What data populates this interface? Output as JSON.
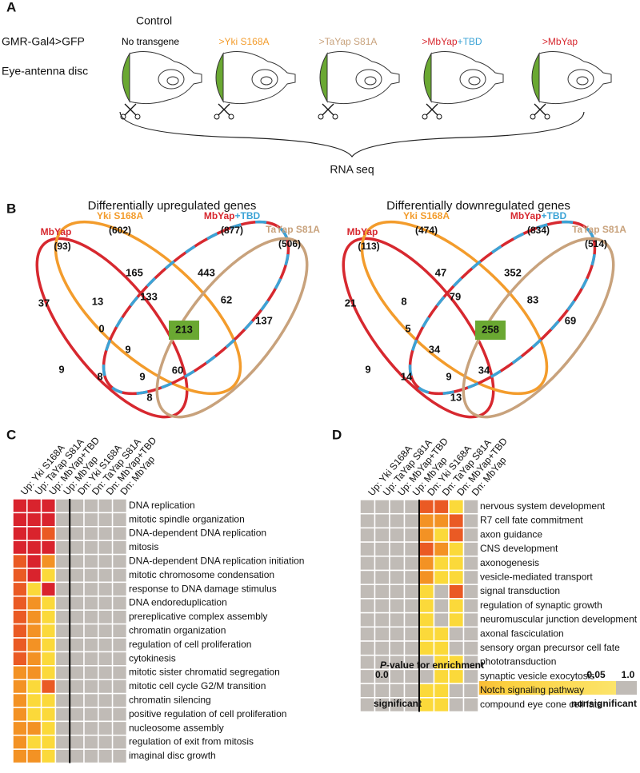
{
  "panel_a": {
    "label": "A",
    "control": "Control",
    "row_labels": [
      "GMR-Gal4>GFP",
      "Eye-antenna disc"
    ],
    "conditions": [
      [
        {
          "text": "No transgene",
          "color": "#000000"
        }
      ],
      [
        {
          "text": ">Yki S168A",
          "color": "#f39c2c"
        }
      ],
      [
        {
          "text": ">TaYap S81A",
          "color": "#c8a27c"
        }
      ],
      [
        {
          "text": ">MbYap",
          "color": "#d7282f"
        },
        {
          "text": "+TBD",
          "color": "#3ba3d6"
        }
      ],
      [
        {
          "text": ">MbYap",
          "color": "#d7282f"
        }
      ]
    ],
    "rna_seq": "RNA seq"
  },
  "panel_b": {
    "label": "B",
    "venns": [
      {
        "title": "Differentially upregulated genes",
        "sets": [
          {
            "name": [
              {
                "text": "MbYap",
                "color": "#d7282f"
              }
            ],
            "count": "(93)",
            "stroke": [
              "#d7282f"
            ]
          },
          {
            "name": [
              {
                "text": "Yki S168A",
                "color": "#f39c2c"
              }
            ],
            "count": "(602)",
            "stroke": [
              "#f39c2c"
            ]
          },
          {
            "name": [
              {
                "text": "MbYap",
                "color": "#d7282f"
              },
              {
                "text": "+TBD",
                "color": "#3ba3d6"
              }
            ],
            "count": "(877)",
            "stroke": [
              "#d7282f",
              "#3ba3d6"
            ]
          },
          {
            "name": [
              {
                "text": "TaYap S81A",
                "color": "#c8a27c"
              }
            ],
            "count": "(506)",
            "stroke": [
              "#c8a27c"
            ]
          }
        ],
        "regions": [
          165,
          443,
          37,
          13,
          133,
          62,
          137,
          0,
          213,
          9,
          9,
          8,
          9,
          60,
          8
        ]
      },
      {
        "title": "Differentially downregulated genes",
        "sets": [
          {
            "name": [
              {
                "text": "MbYap",
                "color": "#d7282f"
              }
            ],
            "count": "(113)",
            "stroke": [
              "#d7282f"
            ]
          },
          {
            "name": [
              {
                "text": "Yki S168A",
                "color": "#f39c2c"
              }
            ],
            "count": "(474)",
            "stroke": [
              "#f39c2c"
            ]
          },
          {
            "name": [
              {
                "text": "MbYap",
                "color": "#d7282f"
              },
              {
                "text": "+TBD",
                "color": "#3ba3d6"
              }
            ],
            "count": "(834)",
            "stroke": [
              "#d7282f",
              "#3ba3d6"
            ]
          },
          {
            "name": [
              {
                "text": "TaYap S81A",
                "color": "#c8a27c"
              }
            ],
            "count": "(514)",
            "stroke": [
              "#c8a27c"
            ]
          }
        ],
        "regions": [
          47,
          352,
          21,
          8,
          79,
          83,
          69,
          5,
          258,
          34,
          9,
          14,
          9,
          34,
          13
        ]
      }
    ]
  },
  "panel_c": {
    "label": "C",
    "columns": [
      "Up: Yki S168A",
      "Up: TaYap S81A",
      "Up: MbYap+TBD",
      "Up: MbYap",
      "Dn: Yki S168A",
      "Dn: TaYap S81A",
      "Dn: MbYap+TBD",
      "Dn: MbYap"
    ],
    "rows": [
      "DNA replication",
      "mitotic spindle organization",
      "DNA-dependent DNA replication",
      "mitosis",
      "DNA-dependent DNA replication initiation",
      "mitotic chromosome condensation",
      "response to DNA damage stimulus",
      "DNA endoreduplication",
      "prereplicative complex assembly",
      "chromatin organization",
      "regulation of cell proliferation",
      "cytokinesis",
      "mitotic sister chromatid segregation",
      "mitotic cell cycle G2/M transition",
      "chromatin silencing",
      "positive regulation of cell proliferation",
      "nucleosome assembly",
      "regulation of exit from mitosis",
      "imaginal disc growth"
    ],
    "cells": [
      [
        "#d9232d",
        "#d9232d",
        "#d9232d",
        "#c0bbb6",
        "#c0bbb6",
        "#c0bbb6",
        "#c0bbb6",
        "#c0bbb6"
      ],
      [
        "#d9232d",
        "#d9232d",
        "#d9232d",
        "#c0bbb6",
        "#c0bbb6",
        "#c0bbb6",
        "#c0bbb6",
        "#c0bbb6"
      ],
      [
        "#d9232d",
        "#d9232d",
        "#ea5a24",
        "#c0bbb6",
        "#c0bbb6",
        "#c0bbb6",
        "#c0bbb6",
        "#c0bbb6"
      ],
      [
        "#d9232d",
        "#d9232d",
        "#d9232d",
        "#c0bbb6",
        "#c0bbb6",
        "#c0bbb6",
        "#c0bbb6",
        "#c0bbb6"
      ],
      [
        "#ea5a24",
        "#d9232d",
        "#f39224",
        "#c0bbb6",
        "#c0bbb6",
        "#c0bbb6",
        "#c0bbb6",
        "#c0bbb6"
      ],
      [
        "#ea5a24",
        "#d9232d",
        "#fbd93a",
        "#c0bbb6",
        "#c0bbb6",
        "#c0bbb6",
        "#c0bbb6",
        "#c0bbb6"
      ],
      [
        "#ea5a24",
        "#fbd93a",
        "#d9232d",
        "#c0bbb6",
        "#c0bbb6",
        "#c0bbb6",
        "#c0bbb6",
        "#c0bbb6"
      ],
      [
        "#ea5a24",
        "#f39224",
        "#fbd93a",
        "#c0bbb6",
        "#c0bbb6",
        "#c0bbb6",
        "#c0bbb6",
        "#c0bbb6"
      ],
      [
        "#ea5a24",
        "#f39224",
        "#fbd93a",
        "#c0bbb6",
        "#c0bbb6",
        "#c0bbb6",
        "#c0bbb6",
        "#c0bbb6"
      ],
      [
        "#ea5a24",
        "#f39224",
        "#fbd93a",
        "#c0bbb6",
        "#c0bbb6",
        "#c0bbb6",
        "#c0bbb6",
        "#c0bbb6"
      ],
      [
        "#ea5a24",
        "#f39224",
        "#fbd93a",
        "#c0bbb6",
        "#c0bbb6",
        "#c0bbb6",
        "#c0bbb6",
        "#c0bbb6"
      ],
      [
        "#ea5a24",
        "#f39224",
        "#fbd93a",
        "#c0bbb6",
        "#c0bbb6",
        "#c0bbb6",
        "#c0bbb6",
        "#c0bbb6"
      ],
      [
        "#f39224",
        "#f39224",
        "#fbd93a",
        "#c0bbb6",
        "#c0bbb6",
        "#c0bbb6",
        "#c0bbb6",
        "#c0bbb6"
      ],
      [
        "#f39224",
        "#fbd93a",
        "#ea5a24",
        "#c0bbb6",
        "#c0bbb6",
        "#c0bbb6",
        "#c0bbb6",
        "#c0bbb6"
      ],
      [
        "#f39224",
        "#fbd93a",
        "#fbd93a",
        "#c0bbb6",
        "#c0bbb6",
        "#c0bbb6",
        "#c0bbb6",
        "#c0bbb6"
      ],
      [
        "#f39224",
        "#fbd93a",
        "#fbd93a",
        "#c0bbb6",
        "#c0bbb6",
        "#c0bbb6",
        "#c0bbb6",
        "#c0bbb6"
      ],
      [
        "#f39224",
        "#f39224",
        "#fbd93a",
        "#c0bbb6",
        "#c0bbb6",
        "#c0bbb6",
        "#c0bbb6",
        "#c0bbb6"
      ],
      [
        "#f39224",
        "#fbd93a",
        "#fbd93a",
        "#c0bbb6",
        "#c0bbb6",
        "#c0bbb6",
        "#c0bbb6",
        "#c0bbb6"
      ],
      [
        "#f39224",
        "#f39224",
        "#fbd93a",
        "#c0bbb6",
        "#c0bbb6",
        "#c0bbb6",
        "#c0bbb6",
        "#c0bbb6"
      ]
    ]
  },
  "panel_d": {
    "label": "D",
    "columns": [
      "Up: Yki S168A",
      "Up: TaYap S81A",
      "Up: MbYap+TBD",
      "Up: MbYap",
      "Dn: Yki S168A",
      "Dn: TaYap S81A",
      "Dn: MbYap+TBD",
      "Dn: MbYap"
    ],
    "rows": [
      "nervous system development",
      "R7 cell fate commitment",
      "axon guidance",
      "CNS development",
      "axonogenesis",
      "vesicle-mediated transport",
      "signal transduction",
      "regulation of synaptic growth",
      "neuromuscular junction development",
      "axonal fasciculation",
      "sensory organ precursor cell fate",
      "phototransduction",
      "synaptic vesicle exocytosis",
      "Notch signaling pathway",
      "compound eye cone cell fate"
    ],
    "cells": [
      [
        "#c0bbb6",
        "#c0bbb6",
        "#c0bbb6",
        "#c0bbb6",
        "#ea5a24",
        "#ea5a24",
        "#fbd93a",
        "#c0bbb6"
      ],
      [
        "#c0bbb6",
        "#c0bbb6",
        "#c0bbb6",
        "#c0bbb6",
        "#f39224",
        "#f39224",
        "#ea5a24",
        "#c0bbb6"
      ],
      [
        "#c0bbb6",
        "#c0bbb6",
        "#c0bbb6",
        "#c0bbb6",
        "#f39224",
        "#fbd93a",
        "#ea5a24",
        "#c0bbb6"
      ],
      [
        "#c0bbb6",
        "#c0bbb6",
        "#c0bbb6",
        "#c0bbb6",
        "#ea5a24",
        "#f39224",
        "#fbd93a",
        "#c0bbb6"
      ],
      [
        "#c0bbb6",
        "#c0bbb6",
        "#c0bbb6",
        "#c0bbb6",
        "#f39224",
        "#fbd93a",
        "#fbd93a",
        "#c0bbb6"
      ],
      [
        "#c0bbb6",
        "#c0bbb6",
        "#c0bbb6",
        "#c0bbb6",
        "#f39224",
        "#fbd93a",
        "#fbd93a",
        "#c0bbb6"
      ],
      [
        "#c0bbb6",
        "#c0bbb6",
        "#c0bbb6",
        "#c0bbb6",
        "#fbd93a",
        "#c0bbb6",
        "#ea5a24",
        "#c0bbb6"
      ],
      [
        "#c0bbb6",
        "#c0bbb6",
        "#c0bbb6",
        "#c0bbb6",
        "#fbd93a",
        "#c0bbb6",
        "#fbd93a",
        "#c0bbb6"
      ],
      [
        "#c0bbb6",
        "#c0bbb6",
        "#c0bbb6",
        "#c0bbb6",
        "#fbd93a",
        "#c0bbb6",
        "#fbd93a",
        "#c0bbb6"
      ],
      [
        "#c0bbb6",
        "#c0bbb6",
        "#c0bbb6",
        "#c0bbb6",
        "#fbd93a",
        "#fbd93a",
        "#c0bbb6",
        "#c0bbb6"
      ],
      [
        "#c0bbb6",
        "#c0bbb6",
        "#c0bbb6",
        "#c0bbb6",
        "#fbd93a",
        "#fbd93a",
        "#c0bbb6",
        "#c0bbb6"
      ],
      [
        "#c0bbb6",
        "#c0bbb6",
        "#c0bbb6",
        "#c0bbb6",
        "#c0bbb6",
        "#fbd93a",
        "#fbd93a",
        "#c0bbb6"
      ],
      [
        "#c0bbb6",
        "#c0bbb6",
        "#c0bbb6",
        "#c0bbb6",
        "#c0bbb6",
        "#fbd93a",
        "#fbd93a",
        "#c0bbb6"
      ],
      [
        "#c0bbb6",
        "#c0bbb6",
        "#c0bbb6",
        "#c0bbb6",
        "#fbd93a",
        "#fbd93a",
        "#c0bbb6",
        "#c0bbb6"
      ],
      [
        "#c0bbb6",
        "#c0bbb6",
        "#c0bbb6",
        "#c0bbb6",
        "#fbd93a",
        "#fbd93a",
        "#c0bbb6",
        "#c0bbb6"
      ]
    ],
    "legend": {
      "title": [
        {
          "text": "P",
          "italic": true
        },
        {
          "text": "-value for enrichment",
          "italic": false
        }
      ],
      "ticks": [
        "0.0",
        "0.05",
        "1.0"
      ],
      "low": "significant",
      "high": "nonsignificant"
    }
  }
}
